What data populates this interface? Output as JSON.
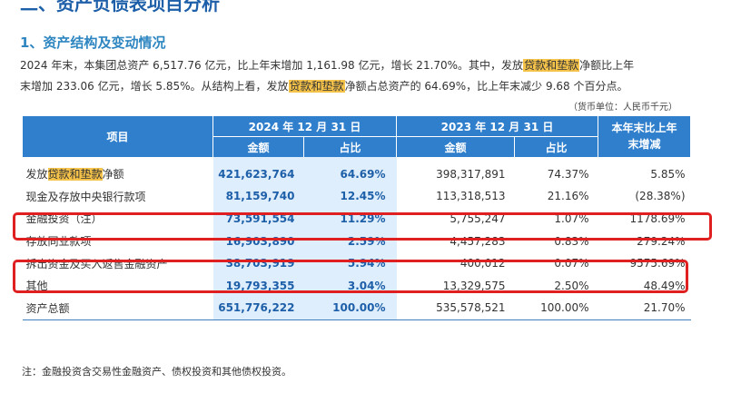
{
  "section_title": "二、资产负债表项目分析",
  "subsection_title": "1、资产结构及变动情况",
  "paragraph": [
    {
      "text": "2024 年末，本集团总资产 6,517.76 亿元，比上年末增加 1,161.98 亿元，增长 21.70%。其中，发放"
    },
    {
      "text": "贷款和垫款",
      "highlight": true
    },
    {
      "text": "净额比上年"
    },
    {
      "text": "末增加 233.06 亿元，增长 5.85%。从结构上看，发放",
      "break_before": true
    },
    {
      "text": "贷款和垫款",
      "highlight": true
    },
    {
      "text": "净额占总资产的 64.69%，比上年末减少 9.68 个百分点。"
    }
  ],
  "unit_note": "（货币单位：人民币千元）",
  "table": {
    "headers": {
      "item": "项目",
      "current_period": "2024 年 12 月 31 日",
      "prior_period": "2023 年 12 月 31 日",
      "amount": "金额",
      "ratio": "占比",
      "change": "本年末比上年末增减"
    },
    "rows": [
      {
        "name_pre": "发放",
        "name_hl": "贷款和垫款",
        "name_post": "净额",
        "amt_2024": "421,623,764",
        "pct_2024": "64.69%",
        "amt_2023": "398,317,891",
        "pct_2023": "74.37%",
        "change": "5.85%"
      },
      {
        "name_pre": "现金及存放中央银行款项",
        "name_hl": "",
        "name_post": "",
        "amt_2024": "81,159,740",
        "pct_2024": "12.45%",
        "amt_2023": "113,318,513",
        "pct_2023": "21.16%",
        "change": "(28.38%)"
      },
      {
        "name_pre": "金融投资（注）",
        "name_hl": "",
        "name_post": "",
        "amt_2024": "73,591,554",
        "pct_2024": "11.29%",
        "amt_2023": "5,755,247",
        "pct_2023": "1.07%",
        "change": "1178.69%"
      },
      {
        "name_pre": "存放同业款项",
        "name_hl": "",
        "name_post": "",
        "amt_2024": "16,903,890",
        "pct_2024": "2.59%",
        "amt_2023": "4,457,283",
        "pct_2023": "0.83%",
        "change": "279.24%"
      },
      {
        "name_pre": "拆出资金及买入返售金融资产",
        "name_hl": "",
        "name_post": "",
        "amt_2024": "38,703,919",
        "pct_2024": "5.94%",
        "amt_2023": "400,012",
        "pct_2023": "0.07%",
        "change": "9575.69%"
      },
      {
        "name_pre": "其他",
        "name_hl": "",
        "name_post": "",
        "amt_2024": "19,793,355",
        "pct_2024": "3.04%",
        "amt_2023": "13,329,575",
        "pct_2023": "2.50%",
        "change": "48.49%"
      },
      {
        "name_pre": "资产总额",
        "name_hl": "",
        "name_post": "",
        "amt_2024": "651,776,222",
        "pct_2024": "100.00%",
        "amt_2023": "535,578,521",
        "pct_2023": "100.00%",
        "change": "21.70%"
      }
    ]
  },
  "footnote": "注：金融投资含交易性金融资产、债权投资和其他债权投资。",
  "colors": {
    "header_bg": "#2f7fcc",
    "current_col_bg": "#dfeefc",
    "highlight": "#f6c34a",
    "annotation_box": "#e02020",
    "title": "#1d5fa8"
  }
}
